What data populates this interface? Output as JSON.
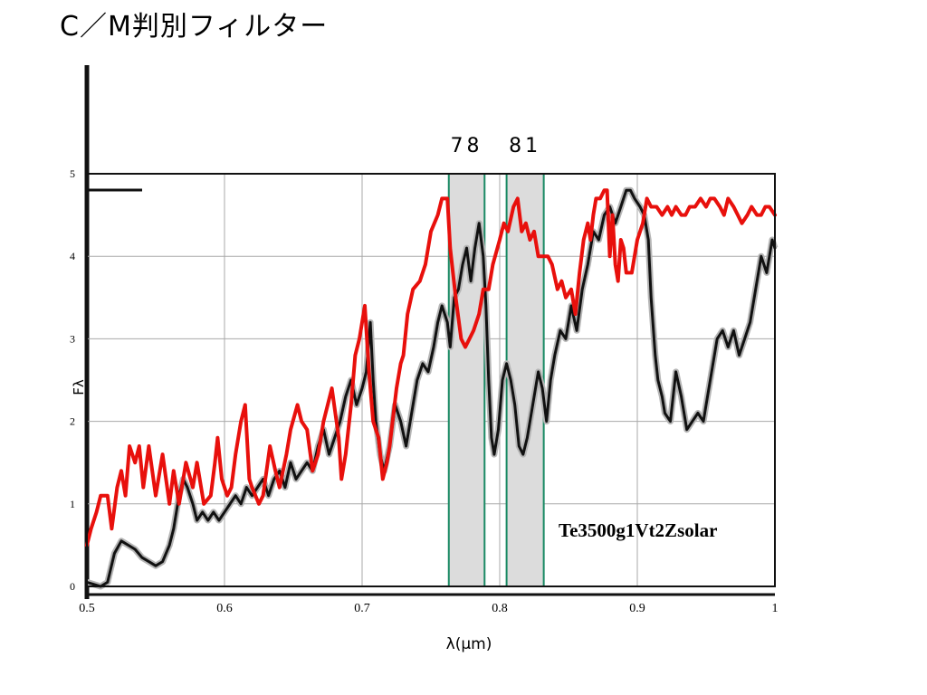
{
  "title": "C／M判別フィルター",
  "chart_data": {
    "type": "line",
    "xlabel": "λ(μm)",
    "ylabel": "Fλ",
    "xlim": [
      0.5,
      1.0
    ],
    "ylim": [
      0,
      5
    ],
    "x_ticks": [
      0.5,
      0.6,
      0.7,
      0.8,
      0.9,
      1.0
    ],
    "x_tick_labels": [
      "0.5",
      "0.6",
      "0.7",
      "0.8",
      "0.9",
      "1"
    ],
    "y_ticks": [
      0,
      1,
      2,
      3,
      4,
      5
    ],
    "y_tick_labels": [
      "0",
      "1",
      "2",
      "3",
      "4",
      "5"
    ],
    "grid": true,
    "annotation": "Te3500g1Vt2Zsolar",
    "colors": {
      "red_series": "#e8100c",
      "black_series": "#111111",
      "filter_band_fill": "#dcdcdc",
      "filter_band_stroke": "#1a8a64"
    },
    "filters": [
      {
        "label": "78",
        "x_start": 0.763,
        "x_end": 0.789
      },
      {
        "label": "81",
        "x_start": 0.805,
        "x_end": 0.832
      }
    ],
    "series": [
      {
        "color": "#e8100c",
        "points": [
          [
            0.5,
            0.5
          ],
          [
            0.503,
            0.7
          ],
          [
            0.507,
            0.9
          ],
          [
            0.51,
            1.1
          ],
          [
            0.515,
            1.1
          ],
          [
            0.518,
            0.7
          ],
          [
            0.522,
            1.2
          ],
          [
            0.525,
            1.4
          ],
          [
            0.528,
            1.1
          ],
          [
            0.531,
            1.7
          ],
          [
            0.535,
            1.5
          ],
          [
            0.538,
            1.7
          ],
          [
            0.541,
            1.2
          ],
          [
            0.545,
            1.7
          ],
          [
            0.55,
            1.1
          ],
          [
            0.555,
            1.6
          ],
          [
            0.56,
            1.0
          ],
          [
            0.563,
            1.4
          ],
          [
            0.567,
            1.0
          ],
          [
            0.572,
            1.5
          ],
          [
            0.577,
            1.2
          ],
          [
            0.58,
            1.5
          ],
          [
            0.585,
            1.0
          ],
          [
            0.59,
            1.1
          ],
          [
            0.593,
            1.5
          ],
          [
            0.595,
            1.8
          ],
          [
            0.598,
            1.3
          ],
          [
            0.602,
            1.1
          ],
          [
            0.605,
            1.2
          ],
          [
            0.608,
            1.6
          ],
          [
            0.612,
            2.0
          ],
          [
            0.615,
            2.2
          ],
          [
            0.618,
            1.3
          ],
          [
            0.62,
            1.2
          ],
          [
            0.625,
            1.0
          ],
          [
            0.628,
            1.1
          ],
          [
            0.633,
            1.7
          ],
          [
            0.637,
            1.4
          ],
          [
            0.64,
            1.2
          ],
          [
            0.645,
            1.6
          ],
          [
            0.648,
            1.9
          ],
          [
            0.653,
            2.2
          ],
          [
            0.656,
            2.0
          ],
          [
            0.66,
            1.9
          ],
          [
            0.664,
            1.4
          ],
          [
            0.668,
            1.6
          ],
          [
            0.672,
            2.0
          ],
          [
            0.675,
            2.2
          ],
          [
            0.678,
            2.4
          ],
          [
            0.683,
            1.8
          ],
          [
            0.685,
            1.3
          ],
          [
            0.688,
            1.6
          ],
          [
            0.692,
            2.2
          ],
          [
            0.695,
            2.8
          ],
          [
            0.698,
            3.0
          ],
          [
            0.702,
            3.4
          ],
          [
            0.705,
            2.6
          ],
          [
            0.708,
            2.0
          ],
          [
            0.712,
            1.8
          ],
          [
            0.715,
            1.3
          ],
          [
            0.718,
            1.5
          ],
          [
            0.72,
            1.7
          ],
          [
            0.725,
            2.4
          ],
          [
            0.728,
            2.7
          ],
          [
            0.73,
            2.8
          ],
          [
            0.733,
            3.3
          ],
          [
            0.737,
            3.6
          ],
          [
            0.742,
            3.7
          ],
          [
            0.746,
            3.9
          ],
          [
            0.75,
            4.3
          ],
          [
            0.755,
            4.5
          ],
          [
            0.758,
            4.7
          ],
          [
            0.762,
            4.7
          ],
          [
            0.764,
            4.1
          ],
          [
            0.768,
            3.5
          ],
          [
            0.772,
            3.0
          ],
          [
            0.775,
            2.9
          ],
          [
            0.778,
            3.0
          ],
          [
            0.781,
            3.1
          ],
          [
            0.785,
            3.3
          ],
          [
            0.788,
            3.6
          ],
          [
            0.792,
            3.6
          ],
          [
            0.795,
            3.9
          ],
          [
            0.8,
            4.2
          ],
          [
            0.803,
            4.4
          ],
          [
            0.806,
            4.3
          ],
          [
            0.81,
            4.6
          ],
          [
            0.813,
            4.7
          ],
          [
            0.816,
            4.3
          ],
          [
            0.819,
            4.4
          ],
          [
            0.822,
            4.2
          ],
          [
            0.825,
            4.3
          ],
          [
            0.828,
            4.0
          ],
          [
            0.832,
            4.0
          ],
          [
            0.835,
            4.0
          ],
          [
            0.838,
            3.9
          ],
          [
            0.842,
            3.6
          ],
          [
            0.845,
            3.7
          ],
          [
            0.848,
            3.5
          ],
          [
            0.852,
            3.6
          ],
          [
            0.855,
            3.3
          ],
          [
            0.858,
            3.8
          ],
          [
            0.861,
            4.2
          ],
          [
            0.864,
            4.4
          ],
          [
            0.866,
            4.2
          ],
          [
            0.868,
            4.5
          ],
          [
            0.87,
            4.7
          ],
          [
            0.873,
            4.7
          ],
          [
            0.876,
            4.8
          ],
          [
            0.878,
            4.8
          ],
          [
            0.88,
            4.0
          ],
          [
            0.882,
            4.5
          ],
          [
            0.884,
            3.9
          ],
          [
            0.886,
            3.7
          ],
          [
            0.888,
            4.2
          ],
          [
            0.89,
            4.1
          ],
          [
            0.892,
            3.8
          ],
          [
            0.896,
            3.8
          ],
          [
            0.9,
            4.2
          ],
          [
            0.904,
            4.4
          ],
          [
            0.907,
            4.7
          ],
          [
            0.91,
            4.6
          ],
          [
            0.914,
            4.6
          ],
          [
            0.918,
            4.5
          ],
          [
            0.922,
            4.6
          ],
          [
            0.925,
            4.5
          ],
          [
            0.928,
            4.6
          ],
          [
            0.932,
            4.5
          ],
          [
            0.935,
            4.5
          ],
          [
            0.938,
            4.6
          ],
          [
            0.942,
            4.6
          ],
          [
            0.946,
            4.7
          ],
          [
            0.95,
            4.6
          ],
          [
            0.953,
            4.7
          ],
          [
            0.956,
            4.7
          ],
          [
            0.96,
            4.6
          ],
          [
            0.963,
            4.5
          ],
          [
            0.966,
            4.7
          ],
          [
            0.97,
            4.6
          ],
          [
            0.973,
            4.5
          ],
          [
            0.976,
            4.4
          ],
          [
            0.98,
            4.5
          ],
          [
            0.983,
            4.6
          ],
          [
            0.987,
            4.5
          ],
          [
            0.99,
            4.5
          ],
          [
            0.993,
            4.6
          ],
          [
            0.996,
            4.6
          ],
          [
            1.0,
            4.5
          ]
        ]
      },
      {
        "color": "#111111",
        "points": [
          [
            0.5,
            0.05
          ],
          [
            0.51,
            0.0
          ],
          [
            0.515,
            0.05
          ],
          [
            0.52,
            0.4
          ],
          [
            0.525,
            0.55
          ],
          [
            0.53,
            0.5
          ],
          [
            0.535,
            0.45
          ],
          [
            0.54,
            0.35
          ],
          [
            0.545,
            0.3
          ],
          [
            0.55,
            0.25
          ],
          [
            0.555,
            0.3
          ],
          [
            0.56,
            0.5
          ],
          [
            0.563,
            0.7
          ],
          [
            0.567,
            1.1
          ],
          [
            0.57,
            1.3
          ],
          [
            0.573,
            1.2
          ],
          [
            0.577,
            1.0
          ],
          [
            0.58,
            0.8
          ],
          [
            0.584,
            0.9
          ],
          [
            0.588,
            0.8
          ],
          [
            0.592,
            0.9
          ],
          [
            0.596,
            0.8
          ],
          [
            0.6,
            0.9
          ],
          [
            0.604,
            1.0
          ],
          [
            0.608,
            1.1
          ],
          [
            0.612,
            1.0
          ],
          [
            0.616,
            1.2
          ],
          [
            0.62,
            1.1
          ],
          [
            0.624,
            1.2
          ],
          [
            0.628,
            1.3
          ],
          [
            0.632,
            1.1
          ],
          [
            0.636,
            1.3
          ],
          [
            0.64,
            1.4
          ],
          [
            0.644,
            1.2
          ],
          [
            0.648,
            1.5
          ],
          [
            0.652,
            1.3
          ],
          [
            0.656,
            1.4
          ],
          [
            0.66,
            1.5
          ],
          [
            0.664,
            1.4
          ],
          [
            0.668,
            1.7
          ],
          [
            0.672,
            1.9
          ],
          [
            0.676,
            1.6
          ],
          [
            0.68,
            1.8
          ],
          [
            0.684,
            2.0
          ],
          [
            0.688,
            2.3
          ],
          [
            0.692,
            2.5
          ],
          [
            0.696,
            2.2
          ],
          [
            0.7,
            2.4
          ],
          [
            0.703,
            2.6
          ],
          [
            0.706,
            3.2
          ],
          [
            0.708,
            2.5
          ],
          [
            0.71,
            2.0
          ],
          [
            0.713,
            1.6
          ],
          [
            0.716,
            1.4
          ],
          [
            0.72,
            1.7
          ],
          [
            0.724,
            2.2
          ],
          [
            0.728,
            2.0
          ],
          [
            0.732,
            1.7
          ],
          [
            0.736,
            2.1
          ],
          [
            0.74,
            2.5
          ],
          [
            0.744,
            2.7
          ],
          [
            0.748,
            2.6
          ],
          [
            0.752,
            2.9
          ],
          [
            0.755,
            3.2
          ],
          [
            0.758,
            3.4
          ],
          [
            0.762,
            3.2
          ],
          [
            0.764,
            2.9
          ],
          [
            0.767,
            3.5
          ],
          [
            0.77,
            3.6
          ],
          [
            0.773,
            3.9
          ],
          [
            0.776,
            4.1
          ],
          [
            0.779,
            3.7
          ],
          [
            0.782,
            4.1
          ],
          [
            0.785,
            4.4
          ],
          [
            0.788,
            4.0
          ],
          [
            0.79,
            3.4
          ],
          [
            0.792,
            2.5
          ],
          [
            0.794,
            1.8
          ],
          [
            0.796,
            1.6
          ],
          [
            0.799,
            1.9
          ],
          [
            0.802,
            2.5
          ],
          [
            0.805,
            2.7
          ],
          [
            0.808,
            2.5
          ],
          [
            0.811,
            2.2
          ],
          [
            0.814,
            1.7
          ],
          [
            0.817,
            1.6
          ],
          [
            0.82,
            1.8
          ],
          [
            0.824,
            2.2
          ],
          [
            0.828,
            2.6
          ],
          [
            0.831,
            2.4
          ],
          [
            0.834,
            2.0
          ],
          [
            0.837,
            2.5
          ],
          [
            0.84,
            2.8
          ],
          [
            0.844,
            3.1
          ],
          [
            0.848,
            3.0
          ],
          [
            0.852,
            3.4
          ],
          [
            0.856,
            3.1
          ],
          [
            0.86,
            3.6
          ],
          [
            0.864,
            3.9
          ],
          [
            0.868,
            4.3
          ],
          [
            0.872,
            4.2
          ],
          [
            0.876,
            4.5
          ],
          [
            0.88,
            4.6
          ],
          [
            0.884,
            4.4
          ],
          [
            0.888,
            4.6
          ],
          [
            0.892,
            4.8
          ],
          [
            0.895,
            4.8
          ],
          [
            0.898,
            4.7
          ],
          [
            0.902,
            4.6
          ],
          [
            0.905,
            4.5
          ],
          [
            0.908,
            4.2
          ],
          [
            0.91,
            3.5
          ],
          [
            0.913,
            2.8
          ],
          [
            0.915,
            2.5
          ],
          [
            0.918,
            2.3
          ],
          [
            0.92,
            2.1
          ],
          [
            0.924,
            2.0
          ],
          [
            0.928,
            2.6
          ],
          [
            0.932,
            2.3
          ],
          [
            0.936,
            1.9
          ],
          [
            0.94,
            2.0
          ],
          [
            0.944,
            2.1
          ],
          [
            0.948,
            2.0
          ],
          [
            0.95,
            2.2
          ],
          [
            0.954,
            2.6
          ],
          [
            0.958,
            3.0
          ],
          [
            0.962,
            3.1
          ],
          [
            0.966,
            2.9
          ],
          [
            0.97,
            3.1
          ],
          [
            0.974,
            2.8
          ],
          [
            0.978,
            3.0
          ],
          [
            0.982,
            3.2
          ],
          [
            0.986,
            3.6
          ],
          [
            0.99,
            4.0
          ],
          [
            0.994,
            3.8
          ],
          [
            0.998,
            4.2
          ],
          [
            1.0,
            4.1
          ]
        ]
      }
    ]
  }
}
